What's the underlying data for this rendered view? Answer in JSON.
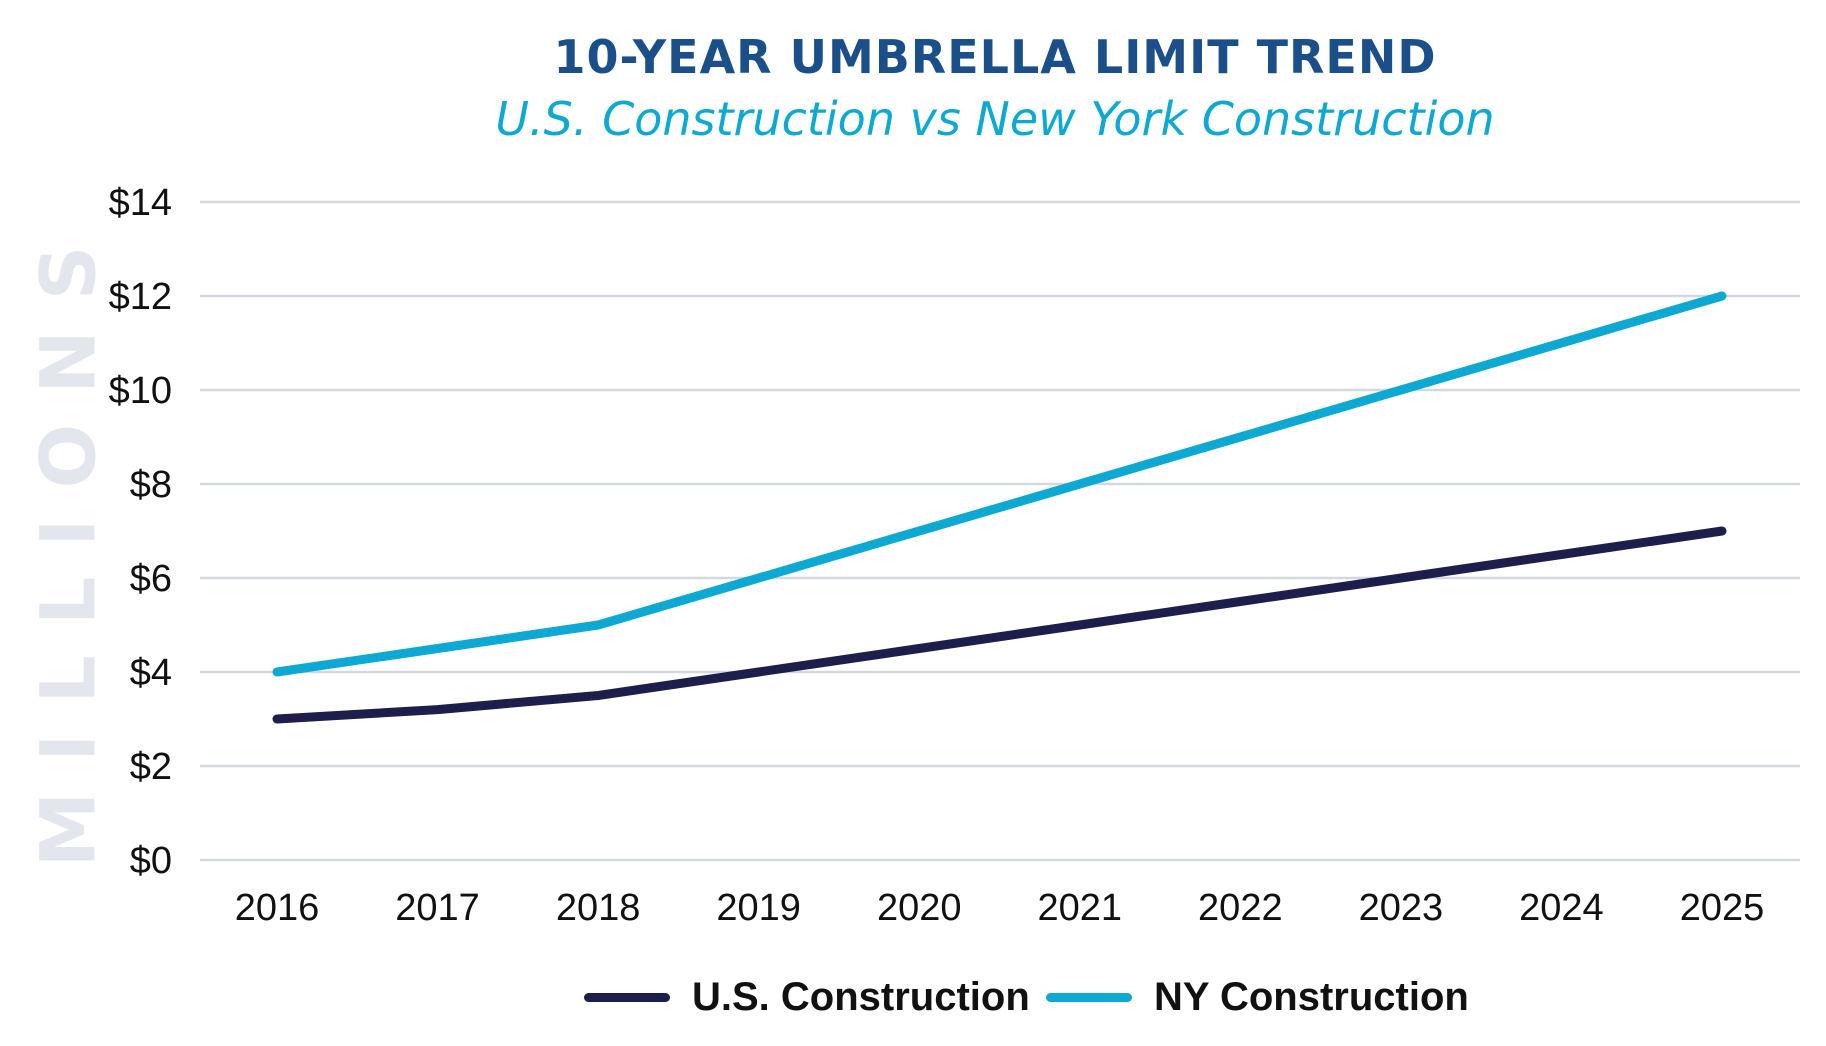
{
  "chart_data": {
    "type": "line",
    "title": "10-YEAR UMBRELLA LIMIT TREND",
    "subtitle": "U.S. Construction vs New York Construction",
    "ylabel": "MILLIONS",
    "xlabel": "",
    "categories": [
      "2016",
      "2017",
      "2018",
      "2019",
      "2020",
      "2021",
      "2022",
      "2023",
      "2024",
      "2025"
    ],
    "yticks": [
      "$0",
      "$2",
      "$4",
      "$6",
      "$8",
      "$10",
      "$12",
      "$14"
    ],
    "ylim": [
      0,
      14
    ],
    "grid": true,
    "legend_position": "bottom-center",
    "series": [
      {
        "name": "U.S. Construction",
        "color": "#1e1e4d",
        "values": [
          3.0,
          3.2,
          3.5,
          4.0,
          4.5,
          5.0,
          5.5,
          6.0,
          6.5,
          7.0
        ]
      },
      {
        "name": "NY Construction",
        "color": "#0da9d2",
        "values": [
          4.0,
          4.5,
          5.0,
          6.0,
          7.0,
          8.0,
          9.0,
          10.0,
          11.0,
          12.0
        ]
      }
    ]
  }
}
